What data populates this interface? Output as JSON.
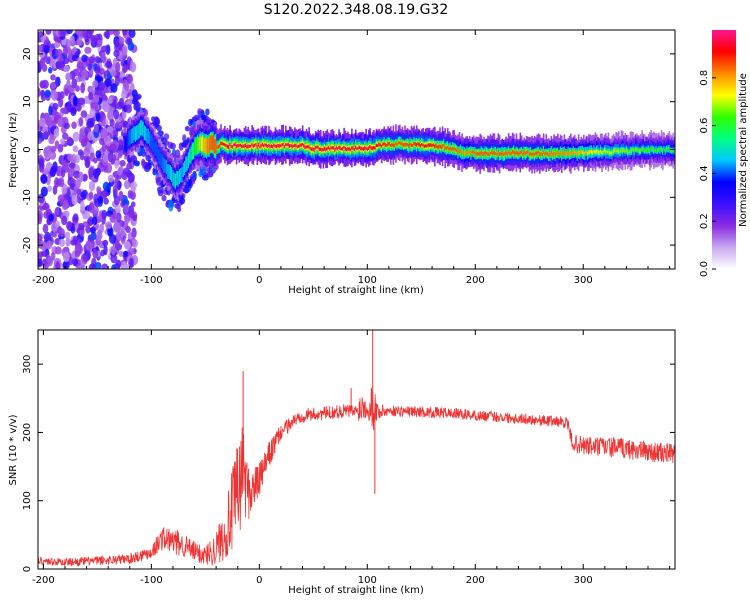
{
  "figure_title": "S120.2022.348.08.19.G32",
  "colorbar": {
    "label": "Normalized spectral amplitude",
    "ticks": [
      "0.0",
      "0.2",
      "0.4",
      "0.6",
      "0.8"
    ],
    "tick_values": [
      0.0,
      0.2,
      0.4,
      0.6,
      0.8
    ],
    "range": [
      0,
      1
    ],
    "colormap": [
      "#ffffff",
      "#c8a8f0",
      "#8a2be2",
      "#3a10ff",
      "#0000ff",
      "#00c8ff",
      "#00ff80",
      "#30ff00",
      "#ffff00",
      "#ff8800",
      "#ff0000",
      "#ff1493"
    ]
  },
  "chart_data": [
    {
      "type": "heatmap",
      "title": "",
      "xlabel": "Height of straight line (km)",
      "ylabel": "Frequency (Hz)",
      "xlim": [
        -205,
        385
      ],
      "ylim": [
        -25,
        25
      ],
      "xticks": [
        -200,
        -100,
        0,
        100,
        200,
        300
      ],
      "yticks": [
        -20,
        -10,
        0,
        10,
        20
      ],
      "xtick_labels": [
        "-200",
        "-100",
        "0",
        "100",
        "200",
        "300"
      ],
      "ytick_labels": [
        "-20",
        "-10",
        "0",
        "10",
        "20"
      ],
      "ridge": {
        "x": [
          -125,
          -118,
          -110,
          -100,
          -92,
          -85,
          -78,
          -72,
          -66,
          -60,
          -55,
          -50,
          -45,
          -40,
          -35,
          -30,
          -20,
          0,
          20,
          40,
          50,
          80,
          100,
          110,
          130,
          150,
          160,
          170,
          180,
          190,
          200,
          230,
          260,
          290,
          320,
          350,
          385
        ],
        "y": [
          1.0,
          3.0,
          4.5,
          1.5,
          -2.0,
          -4.5,
          -6.5,
          -5.0,
          -2.0,
          0.5,
          1.5,
          0.5,
          1.5,
          0.5,
          1.2,
          0.8,
          0.8,
          0.8,
          0.8,
          0.8,
          0.2,
          0.2,
          0.2,
          0.8,
          1.2,
          0.8,
          0.8,
          0.6,
          -0.2,
          -0.6,
          -0.8,
          -0.8,
          -0.8,
          -0.8,
          -0.5,
          -0.2,
          0.0
        ],
        "amplitude": [
          0.35,
          0.45,
          0.5,
          0.4,
          0.4,
          0.45,
          0.5,
          0.45,
          0.5,
          0.6,
          0.7,
          0.8,
          0.85,
          0.85,
          0.9,
          0.95,
          0.95,
          0.95,
          0.95,
          0.95,
          0.95,
          0.95,
          0.95,
          0.9,
          0.85,
          0.9,
          0.9,
          0.85,
          0.85,
          0.8,
          0.85,
          0.85,
          0.85,
          0.8,
          0.7,
          0.65,
          0.6
        ]
      },
      "noise_region": {
        "x": [
          -205,
          -115
        ],
        "ylim": [
          -25,
          25
        ],
        "amplitude": [
          0.1,
          0.4
        ]
      }
    },
    {
      "type": "line",
      "title": "",
      "xlabel": "Height of straight line (km)",
      "ylabel": "SNR (10 * v/v)",
      "xlim": [
        -205,
        385
      ],
      "ylim": [
        0,
        350
      ],
      "xticks": [
        -200,
        -100,
        0,
        100,
        200,
        300
      ],
      "yticks": [
        0,
        100,
        200,
        300
      ],
      "xtick_labels": [
        "-200",
        "-100",
        "0",
        "100",
        "200",
        "300"
      ],
      "ytick_labels": [
        "0",
        "100",
        "200",
        "300"
      ],
      "color": "#ee3333",
      "series": [
        {
          "x": [
            -205,
            -180,
            -150,
            -120,
            -100,
            -90,
            -80,
            -70,
            -60,
            -50,
            -40,
            -30,
            -20,
            -15,
            -10,
            0,
            10,
            20,
            30,
            40,
            60,
            80,
            90,
            95,
            100,
            105,
            110,
            120,
            150,
            180,
            200,
            230,
            260,
            285,
            290,
            300,
            330,
            360,
            385
          ],
          "y": [
            12,
            10,
            12,
            15,
            25,
            45,
            40,
            35,
            25,
            20,
            30,
            60,
            110,
            150,
            110,
            130,
            170,
            200,
            215,
            225,
            228,
            232,
            230,
            240,
            235,
            240,
            230,
            232,
            230,
            228,
            225,
            222,
            218,
            215,
            185,
            180,
            178,
            172,
            168
          ],
          "noise": [
            6,
            6,
            7,
            8,
            10,
            18,
            20,
            18,
            15,
            15,
            25,
            45,
            80,
            70,
            40,
            25,
            20,
            12,
            10,
            10,
            10,
            10,
            12,
            25,
            12,
            40,
            12,
            8,
            8,
            8,
            8,
            8,
            8,
            8,
            12,
            15,
            15,
            15,
            15
          ]
        }
      ],
      "spikes": [
        {
          "x": -15,
          "y": 290
        },
        {
          "x": 105,
          "y": 350
        },
        {
          "x": 107,
          "y": 110
        },
        {
          "x": 85,
          "y": 265
        }
      ]
    }
  ]
}
